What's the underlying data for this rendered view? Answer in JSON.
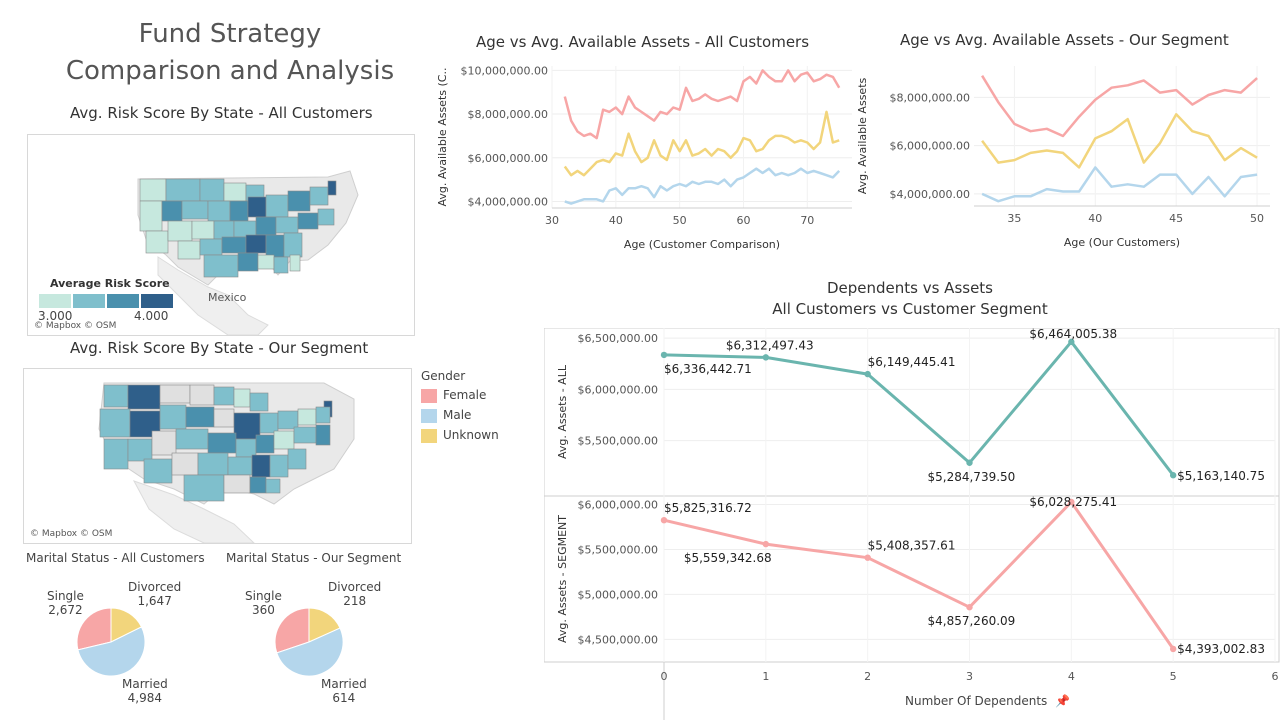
{
  "dashboard": {
    "title_line1": "Fund Strategy",
    "title_line2": "Comparison and Analysis"
  },
  "map_all": {
    "title": "Avg. Risk Score By State - All Customers",
    "legend_title": "Average Risk Score",
    "legend_min": "3.000",
    "legend_max": "4.000",
    "legend_colors": [
      "#c6e8de",
      "#7fbfcc",
      "#4a90ad",
      "#2f5f8a"
    ],
    "attribution": "© Mapbox © OSM",
    "place_label": "Mexico"
  },
  "map_segment": {
    "title": "Avg. Risk Score By State - Our Segment",
    "attribution": "© Mapbox © OSM"
  },
  "gender_legend": {
    "title": "Gender",
    "items": [
      {
        "label": "Female",
        "color": "#f7a6a6"
      },
      {
        "label": "Male",
        "color": "#b4d6ec"
      },
      {
        "label": "Unknown",
        "color": "#f2d57c"
      }
    ]
  },
  "marital_all": {
    "title": "Marital Status - All Customers",
    "single_label": "Single",
    "single_value": "2,672",
    "divorced_label": "Divorced",
    "divorced_value": "1,647",
    "married_label": "Married",
    "married_value": "4,984"
  },
  "marital_segment": {
    "title": "Marital Status - Our Segment",
    "single_label": "Single",
    "single_value": "360",
    "divorced_label": "Divorced",
    "divorced_value": "218",
    "married_label": "Married",
    "married_value": "614"
  },
  "dependents": {
    "title_line1": "Dependents vs Assets",
    "title_line2": "All Customers vs Customer Segment",
    "xlabel": "Number Of Dependents"
  },
  "chart_data": [
    {
      "type": "line",
      "title": "Age vs Avg. Available Assets - All Customers",
      "xlabel": "Age (Customer Comparison)",
      "ylabel": "Avg. Available Assets (C..",
      "xlim": [
        30,
        77
      ],
      "ylim": [
        3700000,
        10200000
      ],
      "x_ticks": [
        30,
        40,
        50,
        60,
        70
      ],
      "y_ticks": [
        "$4,000,000.00",
        "$6,000,000.00",
        "$8,000,000.00",
        "$10,000,000.00"
      ],
      "y_tick_values": [
        4000000,
        6000000,
        8000000,
        10000000
      ],
      "grid": true,
      "x": [
        32,
        33,
        34,
        35,
        36,
        37,
        38,
        39,
        40,
        41,
        42,
        43,
        44,
        45,
        46,
        47,
        48,
        49,
        50,
        51,
        52,
        53,
        54,
        55,
        56,
        57,
        58,
        59,
        60,
        61,
        62,
        63,
        64,
        65,
        66,
        67,
        68,
        69,
        70,
        71,
        72,
        73,
        74,
        75
      ],
      "series": [
        {
          "name": "Female",
          "color": "#f7a6a6",
          "values": [
            8800000,
            7700000,
            7200000,
            7000000,
            7100000,
            6900000,
            8200000,
            8100000,
            8300000,
            8000000,
            8800000,
            8300000,
            8100000,
            7900000,
            7700000,
            8100000,
            8000000,
            8300000,
            8200000,
            9200000,
            8600000,
            8700000,
            8900000,
            8700000,
            8600000,
            8700000,
            8800000,
            8600000,
            9500000,
            9700000,
            9400000,
            10000000,
            9700000,
            9500000,
            9500000,
            10000000,
            9500000,
            9800000,
            9900000,
            9500000,
            9600000,
            9800000,
            9700000,
            9200000
          ]
        },
        {
          "name": "Unknown",
          "color": "#f2d57c",
          "values": [
            5600000,
            5200000,
            5400000,
            5200000,
            5500000,
            5800000,
            5900000,
            5800000,
            6200000,
            6100000,
            7100000,
            6300000,
            5800000,
            6000000,
            6800000,
            6100000,
            5900000,
            6800000,
            6300000,
            6800000,
            6100000,
            6200000,
            6400000,
            6100000,
            6400000,
            6300000,
            6000000,
            6300000,
            6900000,
            6800000,
            6300000,
            6400000,
            6800000,
            7000000,
            7000000,
            6900000,
            6700000,
            6800000,
            6700000,
            6400000,
            6700000,
            8100000,
            6700000,
            6800000
          ]
        },
        {
          "name": "Male",
          "color": "#b4d6ec",
          "values": [
            4000000,
            3900000,
            4000000,
            4100000,
            4100000,
            4100000,
            4000000,
            4500000,
            4600000,
            4300000,
            4600000,
            4600000,
            4700000,
            4600000,
            4200000,
            4700000,
            4500000,
            4700000,
            4800000,
            4700000,
            4900000,
            4800000,
            4900000,
            4900000,
            4800000,
            5000000,
            4700000,
            5000000,
            5100000,
            5300000,
            5500000,
            5300000,
            5500000,
            5200000,
            5300000,
            5200000,
            5300000,
            5500000,
            5300000,
            5400000,
            5300000,
            5200000,
            5100000,
            5400000
          ]
        }
      ]
    },
    {
      "type": "line",
      "title": "Age vs Avg. Available Assets - Our Segment",
      "xlabel": "Age (Our Customers)",
      "ylabel": "Avg. Available Assets",
      "xlim": [
        32.5,
        50.8
      ],
      "ylim": [
        3500000,
        9300000
      ],
      "x_ticks": [
        35,
        40,
        45,
        50
      ],
      "y_ticks": [
        "$4,000,000.00",
        "$6,000,000.00",
        "$8,000,000.00"
      ],
      "y_tick_values": [
        4000000,
        6000000,
        8000000
      ],
      "grid": true,
      "x": [
        33,
        34,
        35,
        36,
        37,
        38,
        39,
        40,
        41,
        42,
        43,
        44,
        45,
        46,
        47,
        48,
        49,
        50
      ],
      "series": [
        {
          "name": "Female",
          "color": "#f7a6a6",
          "values": [
            8900000,
            7800000,
            6900000,
            6600000,
            6700000,
            6400000,
            7200000,
            7900000,
            8400000,
            8500000,
            8700000,
            8200000,
            8300000,
            7700000,
            8100000,
            8300000,
            8200000,
            8800000
          ]
        },
        {
          "name": "Unknown",
          "color": "#f2d57c",
          "values": [
            6200000,
            5300000,
            5400000,
            5700000,
            5800000,
            5700000,
            5100000,
            6300000,
            6600000,
            7100000,
            5300000,
            6100000,
            7300000,
            6600000,
            6400000,
            5400000,
            5900000,
            5500000
          ]
        },
        {
          "name": "Male",
          "color": "#b4d6ec",
          "values": [
            4000000,
            3700000,
            3900000,
            3900000,
            4200000,
            4100000,
            4100000,
            5100000,
            4300000,
            4400000,
            4300000,
            4800000,
            4800000,
            4000000,
            4700000,
            3900000,
            4700000,
            4800000
          ]
        }
      ]
    },
    {
      "type": "line",
      "title": "Dependents vs Assets - All Customers",
      "ylabel": "Avg. Assets - ALL",
      "xlim": [
        0,
        6
      ],
      "ylim": [
        4980000,
        6560000
      ],
      "y_ticks": [
        "$5,500,000.00",
        "$6,000,000.00",
        "$6,500,000.00"
      ],
      "y_tick_values": [
        5500000,
        6000000,
        6500000
      ],
      "x": [
        0,
        1,
        2,
        3,
        4,
        5
      ],
      "series": [
        {
          "name": "Avg. Assets - ALL",
          "color": "#6ab5ae",
          "values": [
            6336442.71,
            6312497.43,
            6149445.41,
            5284739.5,
            6464005.38,
            5163140.75
          ],
          "labels": [
            "$6,336,442.71",
            "$6,312,497.43",
            "$6,149,445.41",
            "$5,284,739.50",
            "$6,464,005.38",
            "$5,163,140.75"
          ]
        }
      ]
    },
    {
      "type": "line",
      "title": "Dependents vs Assets - Customer Segment",
      "ylabel": "Avg. Assets - SEGMENT",
      "xlim": [
        0,
        6
      ],
      "ylim": [
        4270000,
        6050000
      ],
      "y_ticks": [
        "$4,500,000.00",
        "$5,000,000.00",
        "$5,500,000.00",
        "$6,000,000.00"
      ],
      "y_tick_values": [
        4500000,
        5000000,
        5500000,
        6000000
      ],
      "x_ticks": [
        0,
        1,
        2,
        3,
        4,
        5,
        6
      ],
      "x": [
        0,
        1,
        2,
        3,
        4,
        5
      ],
      "series": [
        {
          "name": "Avg. Assets - SEGMENT",
          "color": "#f7a6a6",
          "values": [
            5825316.72,
            5559342.68,
            5408357.61,
            4857260.09,
            6028275.41,
            4393002.83
          ],
          "labels": [
            "$5,825,316.72",
            "$5,559,342.68",
            "$5,408,357.61",
            "$4,857,260.09",
            "$6,028,275.41",
            "$4,393,002.83"
          ]
        }
      ]
    },
    {
      "type": "pie",
      "title": "Marital Status - All Customers",
      "categories": [
        "Single",
        "Divorced",
        "Married"
      ],
      "values": [
        2672,
        1647,
        4984
      ],
      "colors": [
        "#f7a6a6",
        "#f2d57c",
        "#b4d6ec"
      ]
    },
    {
      "type": "pie",
      "title": "Marital Status - Our Segment",
      "categories": [
        "Single",
        "Divorced",
        "Married"
      ],
      "values": [
        360,
        218,
        614
      ],
      "colors": [
        "#f7a6a6",
        "#f2d57c",
        "#b4d6ec"
      ]
    }
  ]
}
